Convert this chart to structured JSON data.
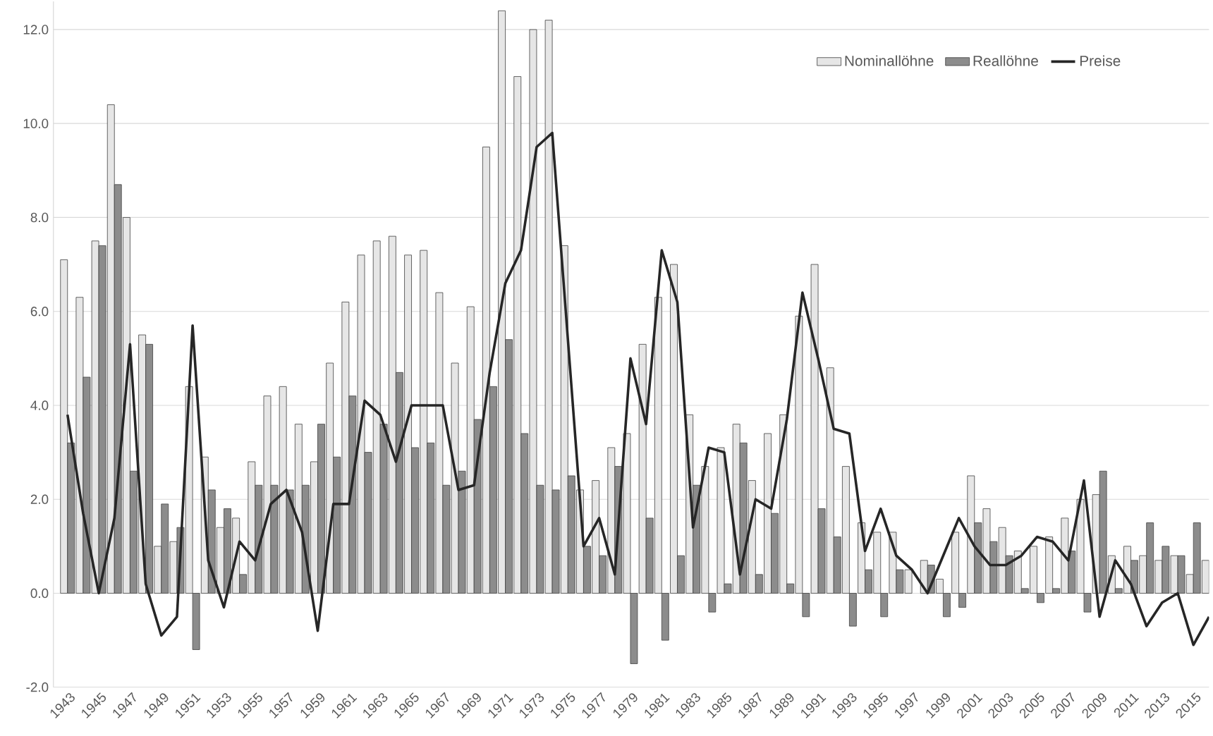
{
  "chart_data": {
    "type": "bar",
    "categories": [
      "1943",
      null,
      "1945",
      null,
      "1947",
      null,
      "1949",
      null,
      "1951",
      null,
      "1953",
      null,
      "1955",
      null,
      "1957",
      null,
      "1959",
      null,
      "1961",
      null,
      "1963",
      null,
      "1965",
      null,
      "1967",
      null,
      "1969",
      null,
      "1971",
      null,
      "1973",
      null,
      "1975",
      null,
      "1977",
      null,
      "1979",
      null,
      "1981",
      null,
      "1983",
      null,
      "1985",
      null,
      "1987",
      null,
      "1989",
      null,
      "1991",
      null,
      "1993",
      null,
      "1995",
      null,
      "1997",
      null,
      "1999",
      null,
      "2001",
      null,
      "2003",
      null,
      "2005",
      null,
      "2007",
      null,
      "2009",
      null,
      "2011",
      null,
      "2013",
      null,
      "2015",
      null
    ],
    "series": [
      {
        "name": "Nominallöhne",
        "color": "#e6e6e6",
        "values": [
          7.1,
          6.3,
          7.5,
          10.4,
          8.0,
          5.5,
          1.0,
          1.1,
          4.4,
          2.9,
          1.4,
          1.6,
          2.8,
          4.2,
          4.4,
          3.6,
          2.8,
          4.9,
          6.2,
          7.2,
          7.5,
          7.6,
          7.2,
          7.3,
          6.4,
          4.9,
          6.1,
          9.5,
          12.4,
          11.0,
          12.0,
          12.2,
          7.4,
          2.2,
          2.4,
          3.1,
          3.4,
          5.3,
          6.3,
          7.0,
          3.8,
          2.7,
          3.1,
          3.6,
          2.4,
          3.4,
          3.8,
          5.9,
          7.0,
          4.8,
          2.7,
          1.5,
          1.3,
          1.3,
          0.5,
          0.7,
          0.3,
          1.3,
          2.5,
          1.8,
          1.4,
          0.9,
          1.0,
          1.2,
          1.6,
          2.0,
          2.1,
          0.8,
          1.0,
          0.8,
          0.7,
          0.8,
          0.4,
          0.7
        ]
      },
      {
        "name": "Reallöhne",
        "color": "#8c8c8c",
        "values": [
          3.2,
          4.6,
          7.4,
          8.7,
          2.6,
          5.3,
          1.9,
          1.4,
          -1.2,
          2.2,
          1.8,
          0.4,
          2.3,
          2.3,
          2.2,
          2.3,
          3.6,
          2.9,
          4.2,
          3.0,
          3.6,
          4.7,
          3.1,
          3.2,
          2.3,
          2.6,
          3.7,
          4.4,
          5.4,
          3.4,
          2.3,
          2.2,
          2.5,
          1.0,
          0.8,
          2.7,
          -1.5,
          1.6,
          -1.0,
          0.8,
          2.3,
          -0.4,
          0.2,
          3.2,
          0.4,
          1.7,
          0.2,
          -0.5,
          1.8,
          1.2,
          -0.7,
          0.5,
          -0.5,
          0.5,
          null,
          0.6,
          -0.5,
          -0.3,
          1.5,
          1.1,
          0.8,
          0.1,
          -0.2,
          0.1,
          0.9,
          -0.4,
          2.6,
          0.1,
          0.7,
          1.5,
          1.0,
          0.8,
          1.5,
          null
        ]
      },
      {
        "name": "Preise",
        "type": "line",
        "color": "#262626",
        "values": [
          3.8,
          1.7,
          0.0,
          1.6,
          5.3,
          0.2,
          -0.9,
          -0.5,
          5.7,
          0.7,
          -0.3,
          1.1,
          0.7,
          1.9,
          2.2,
          1.3,
          -0.8,
          1.9,
          1.9,
          4.1,
          3.8,
          2.8,
          4.0,
          4.0,
          4.0,
          2.2,
          2.3,
          4.7,
          6.6,
          7.3,
          9.5,
          9.8,
          5.4,
          1.0,
          1.6,
          0.4,
          5.0,
          3.6,
          7.3,
          6.2,
          1.4,
          3.1,
          3.0,
          0.4,
          2.0,
          1.8,
          3.7,
          6.4,
          5.0,
          3.5,
          3.4,
          0.9,
          1.8,
          0.8,
          0.5,
          0.0,
          0.8,
          1.6,
          1.0,
          0.6,
          0.6,
          0.8,
          1.2,
          1.1,
          0.7,
          2.4,
          -0.5,
          0.7,
          0.2,
          -0.7,
          -0.2,
          0.0,
          -1.1,
          -0.5
        ]
      }
    ],
    "ylim": [
      -2,
      12.6
    ],
    "yticks": [
      {
        "value": -2,
        "label": "-2.0"
      },
      {
        "value": 0,
        "label": "0.0"
      },
      {
        "value": 2,
        "label": "2.0"
      },
      {
        "value": 4,
        "label": "4.0"
      },
      {
        "value": 6,
        "label": "6.0"
      },
      {
        "value": 8,
        "label": "8.0"
      },
      {
        "value": 10,
        "label": "10.0"
      },
      {
        "value": 12,
        "label": "12.0"
      }
    ],
    "grid": "y",
    "legend": "top right",
    "marker": "none",
    "line_style": "solid"
  }
}
